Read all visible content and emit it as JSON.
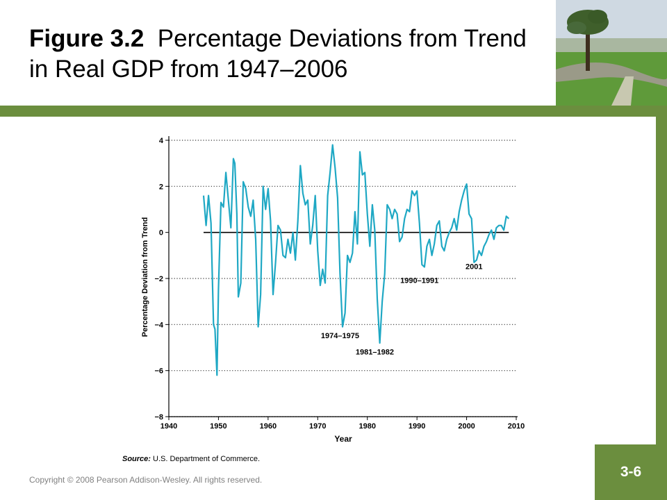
{
  "slide": {
    "title_bold": "Figure 3.2",
    "title_rest": "Percentage Deviations from Trend in Real GDP from 1947–2006",
    "slide_number": "3-6",
    "copyright": "Copyright © 2008 Pearson Addison-Wesley. All rights reserved.",
    "source_label": "Source:",
    "source_text": "U.S. Department of Commerce.",
    "colors": {
      "accent": "#6b8e3e",
      "series": "#1fa8c4"
    }
  },
  "chart_data": {
    "type": "line",
    "title": "",
    "xlabel": "Year",
    "ylabel": "Percentage Deviation from Trend",
    "xlim": [
      1940,
      2010
    ],
    "ylim": [
      -8,
      4
    ],
    "x_ticks": [
      1940,
      1950,
      1960,
      1970,
      1980,
      1990,
      2000,
      2010
    ],
    "y_ticks": [
      4,
      2,
      0,
      -2,
      -4,
      -6,
      -8
    ],
    "grid": "dotted horizontal",
    "annotations": [
      {
        "text": "1974–1975",
        "x": 1974.5,
        "y": -4.6
      },
      {
        "text": "1981–1982",
        "x": 1981.5,
        "y": -5.3
      },
      {
        "text": "1990–1991",
        "x": 1990.5,
        "y": -2.2
      },
      {
        "text": "2001",
        "x": 2001.5,
        "y": -1.6
      }
    ],
    "series": [
      {
        "x": [
          1947.0,
          1947.5,
          1948.0,
          1948.5,
          1949.0,
          1949.3,
          1949.7,
          1950.0,
          1950.5,
          1951.0,
          1951.5,
          1952.0,
          1952.5,
          1953.0,
          1953.3,
          1953.7,
          1954.0,
          1954.5,
          1955.0,
          1955.5,
          1956.0,
          1956.5,
          1957.0,
          1957.5,
          1958.0,
          1958.5,
          1959.0,
          1959.5,
          1960.0,
          1960.5,
          1961.0,
          1961.5,
          1962.0,
          1962.5,
          1963.0,
          1963.5,
          1964.0,
          1964.5,
          1965.0,
          1965.5,
          1966.0,
          1966.5,
          1967.0,
          1967.5,
          1968.0,
          1968.5,
          1969.0,
          1969.5,
          1970.0,
          1970.5,
          1971.0,
          1971.5,
          1972.0,
          1972.5,
          1973.0,
          1973.5,
          1974.0,
          1974.5,
          1975.0,
          1975.5,
          1976.0,
          1976.5,
          1977.0,
          1977.5,
          1978.0,
          1978.5,
          1979.0,
          1979.5,
          1980.0,
          1980.5,
          1981.0,
          1981.5,
          1982.0,
          1982.5,
          1983.0,
          1983.5,
          1984.0,
          1984.5,
          1985.0,
          1985.5,
          1986.0,
          1986.5,
          1987.0,
          1987.5,
          1988.0,
          1988.5,
          1989.0,
          1989.5,
          1990.0,
          1990.5,
          1991.0,
          1991.5,
          1992.0,
          1992.5,
          1993.0,
          1993.5,
          1994.0,
          1994.5,
          1995.0,
          1995.5,
          1996.0,
          1996.5,
          1997.0,
          1997.5,
          1998.0,
          1998.5,
          1999.0,
          1999.5,
          2000.0,
          2000.5,
          2001.0,
          2001.5,
          2002.0,
          2002.5,
          2003.0,
          2003.5,
          2004.0,
          2004.5,
          2005.0,
          2005.5,
          2006.0,
          2006.5,
          2007.0,
          2007.5,
          2008.0,
          2008.5
        ],
        "values": [
          1.6,
          0.3,
          1.6,
          0.4,
          -4.0,
          -4.2,
          -6.2,
          -2.5,
          1.3,
          1.1,
          2.6,
          1.4,
          0.2,
          3.2,
          3.0,
          0.8,
          -2.8,
          -2.2,
          2.2,
          1.9,
          1.1,
          0.7,
          1.4,
          -0.3,
          -4.1,
          -2.7,
          2.0,
          1.0,
          1.9,
          0.5,
          -2.7,
          -1.3,
          0.3,
          0.1,
          -1.0,
          -1.1,
          -0.3,
          -0.9,
          0.0,
          -1.2,
          0.5,
          2.9,
          1.7,
          1.2,
          1.4,
          -0.5,
          0.3,
          1.6,
          -0.8,
          -2.3,
          -1.6,
          -2.2,
          1.6,
          2.6,
          3.8,
          2.8,
          1.5,
          -1.8,
          -4.1,
          -3.5,
          -1.0,
          -1.3,
          -0.9,
          0.9,
          -0.5,
          3.5,
          2.5,
          2.6,
          0.8,
          -0.6,
          1.2,
          0.1,
          -2.9,
          -4.8,
          -3.0,
          -1.8,
          1.2,
          1.0,
          0.6,
          1.0,
          0.8,
          -0.4,
          -0.2,
          0.6,
          1.0,
          0.9,
          1.8,
          1.6,
          1.8,
          0.4,
          -1.4,
          -1.5,
          -0.6,
          -0.3,
          -1.0,
          -0.5,
          0.3,
          0.5,
          -0.6,
          -0.8,
          -0.3,
          0.0,
          0.2,
          0.6,
          0.1,
          0.9,
          1.4,
          1.8,
          2.1,
          0.8,
          0.6,
          -1.3,
          -1.2,
          -0.8,
          -1.0,
          -0.6,
          -0.4,
          -0.1,
          0.1,
          -0.3,
          0.2,
          0.3,
          0.3,
          0.1,
          0.7,
          0.6
        ]
      }
    ]
  }
}
